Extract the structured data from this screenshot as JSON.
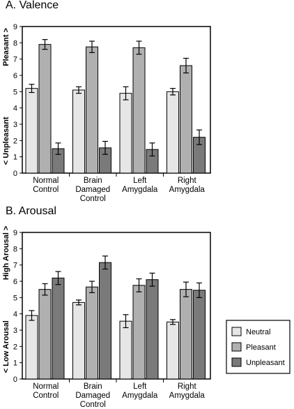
{
  "panels": [
    {
      "id": "a",
      "title": "A. Valence"
    },
    {
      "id": "b",
      "title": "B. Arousal"
    }
  ],
  "legend": {
    "items": [
      {
        "label": "Neutral",
        "color": "#e6e6e6"
      },
      {
        "label": "Pleasant",
        "color": "#b0b0b0"
      },
      {
        "label": "Unpleasant",
        "color": "#7a7a7a"
      }
    ]
  },
  "chart_data": [
    {
      "type": "bar",
      "title": "A. Valence",
      "categories": [
        [
          "Normal",
          "Control"
        ],
        [
          "Brain",
          "Damaged",
          "Control"
        ],
        [
          "Left",
          "Amygdala"
        ],
        [
          "Right",
          "Amygdala"
        ]
      ],
      "ylabel_top": "Pleasant >",
      "ylabel_bottom": "< Unpleasant",
      "ylim": [
        0,
        9
      ],
      "yticks": [
        0,
        1,
        2,
        3,
        4,
        5,
        6,
        7,
        8,
        9
      ],
      "series": [
        {
          "name": "Neutral",
          "color": "#e6e6e6",
          "values": [
            5.2,
            5.1,
            4.9,
            5.0
          ],
          "errors": [
            0.25,
            0.2,
            0.4,
            0.2
          ]
        },
        {
          "name": "Pleasant",
          "color": "#b0b0b0",
          "values": [
            7.9,
            7.75,
            7.7,
            6.6
          ],
          "errors": [
            0.3,
            0.35,
            0.4,
            0.45
          ]
        },
        {
          "name": "Unpleasant",
          "color": "#7a7a7a",
          "values": [
            1.5,
            1.55,
            1.45,
            2.2
          ],
          "errors": [
            0.35,
            0.4,
            0.4,
            0.45
          ]
        }
      ]
    },
    {
      "type": "bar",
      "title": "B. Arousal",
      "categories": [
        [
          "Normal",
          "Control"
        ],
        [
          "Brain",
          "Damaged",
          "Control"
        ],
        [
          "Left",
          "Amygdala"
        ],
        [
          "Right",
          "Amygdala"
        ]
      ],
      "ylabel_top": "High Arousal >",
      "ylabel_bottom": "< Low Arousal",
      "ylim": [
        0,
        9
      ],
      "yticks": [
        0,
        1,
        2,
        3,
        4,
        5,
        6,
        7,
        8,
        9
      ],
      "series": [
        {
          "name": "Neutral",
          "color": "#e6e6e6",
          "values": [
            3.9,
            4.7,
            3.55,
            3.5
          ],
          "errors": [
            0.3,
            0.15,
            0.4,
            0.15
          ]
        },
        {
          "name": "Pleasant",
          "color": "#b0b0b0",
          "values": [
            5.5,
            5.65,
            5.75,
            5.5
          ],
          "errors": [
            0.35,
            0.35,
            0.4,
            0.45
          ]
        },
        {
          "name": "Unpleasant",
          "color": "#7a7a7a",
          "values": [
            6.2,
            7.15,
            6.1,
            5.45
          ],
          "errors": [
            0.4,
            0.4,
            0.4,
            0.45
          ]
        }
      ]
    }
  ]
}
